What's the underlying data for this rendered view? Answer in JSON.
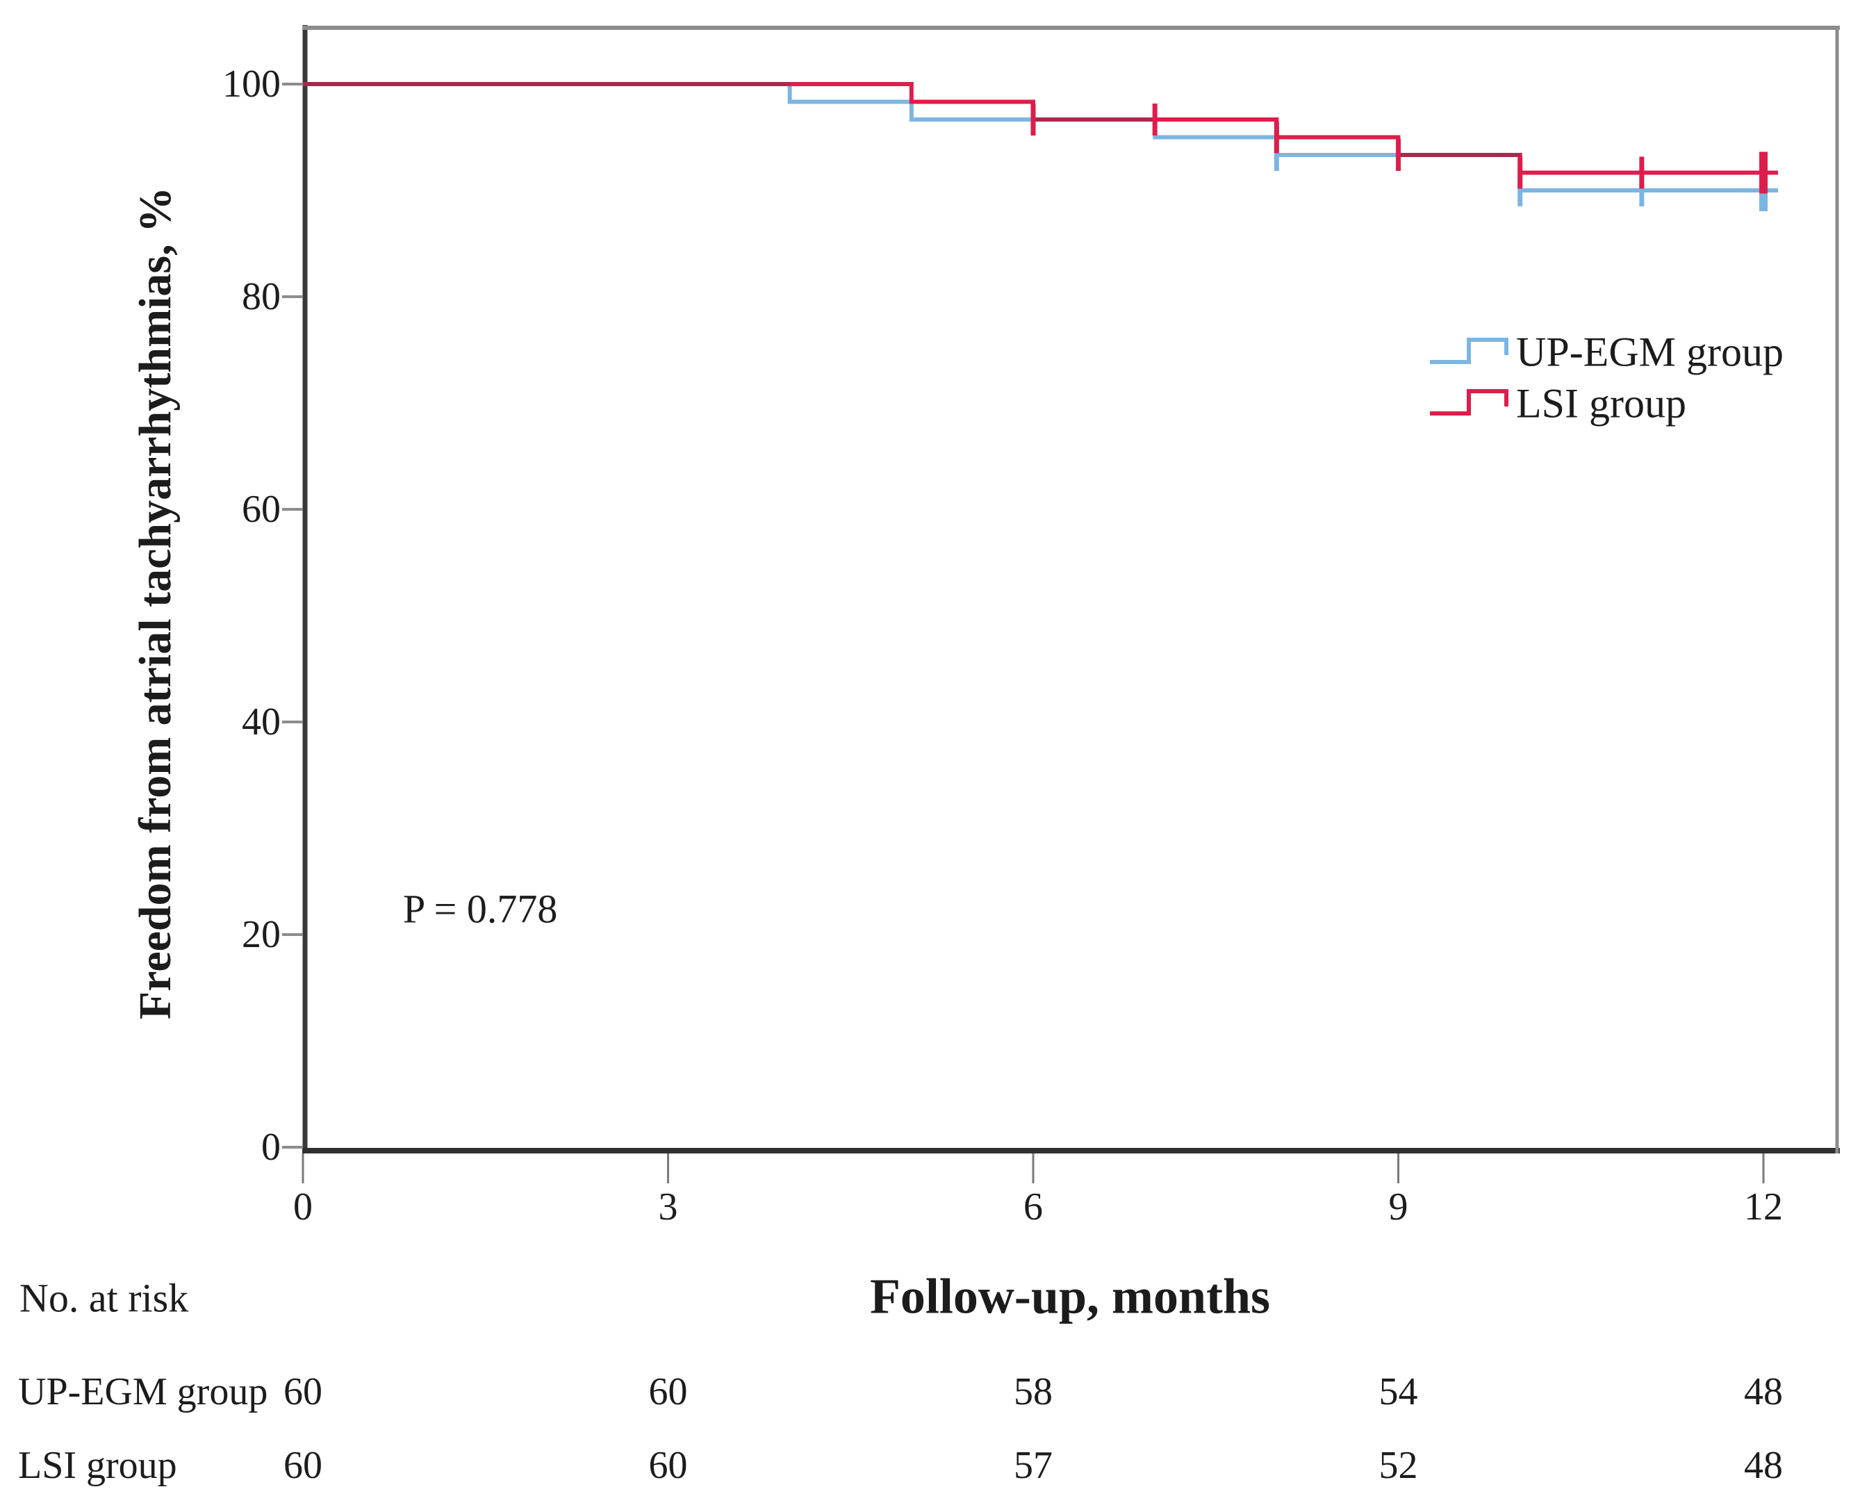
{
  "figure": {
    "background": "#ffffff",
    "text_color": "#1c1c1c",
    "spine_dark_color": "#383838",
    "spine_light_color": "#8c8c8c",
    "tick_color": "#7a7a7a"
  },
  "chart_data": {
    "type": "line",
    "subtype": "kaplan-meier-step",
    "title": "",
    "xlabel": "Follow-up, months",
    "ylabel": "Freedom from atrial tachyarrhythmias, %",
    "x_ticks": [
      0,
      3,
      6,
      9,
      12
    ],
    "y_ticks": [
      0,
      20,
      40,
      60,
      80,
      100
    ],
    "xlim": [
      0,
      12.6
    ],
    "ylim": [
      0,
      105
    ],
    "grid": false,
    "legend_position": "upper right inside plot",
    "annotation": "P = 0.778",
    "overlap_color": "#a72a4e",
    "series": [
      {
        "name": "UP-EGM group",
        "color": "#7cb5e1",
        "steps": [
          [
            0,
            100
          ],
          [
            4,
            98.33
          ],
          [
            5,
            96.67
          ],
          [
            7,
            95
          ],
          [
            8,
            93.33
          ],
          [
            10,
            90
          ]
        ],
        "end_x": 12.12,
        "censor_marks": [
          {
            "x": 8,
            "y": 93.33
          },
          {
            "x": 10,
            "y": 90
          },
          {
            "x": 11,
            "y": 90
          },
          {
            "x": 12,
            "y": 90,
            "big": true
          }
        ]
      },
      {
        "name": "LSI group",
        "color": "#dd1e4b",
        "steps": [
          [
            0,
            100
          ],
          [
            5,
            98.33
          ],
          [
            6,
            96.67
          ],
          [
            8,
            95
          ],
          [
            9,
            93.33
          ],
          [
            10,
            91.67
          ]
        ],
        "end_x": 12.12,
        "censor_marks": [
          {
            "x": 6,
            "y": 96.67
          },
          {
            "x": 7,
            "y": 96.67
          },
          {
            "x": 8,
            "y": 95
          },
          {
            "x": 9,
            "y": 93.33
          },
          {
            "x": 10,
            "y": 91.67
          },
          {
            "x": 11,
            "y": 91.67
          },
          {
            "x": 12,
            "y": 91.67,
            "big": true
          }
        ]
      }
    ],
    "risk_table": {
      "header": "No. at risk",
      "time_points": [
        0,
        3,
        6,
        9,
        12
      ],
      "rows": [
        {
          "label": "UP-EGM group",
          "counts": [
            60,
            60,
            58,
            54,
            48
          ]
        },
        {
          "label": "LSI group",
          "counts": [
            60,
            60,
            57,
            52,
            48
          ]
        }
      ]
    }
  }
}
